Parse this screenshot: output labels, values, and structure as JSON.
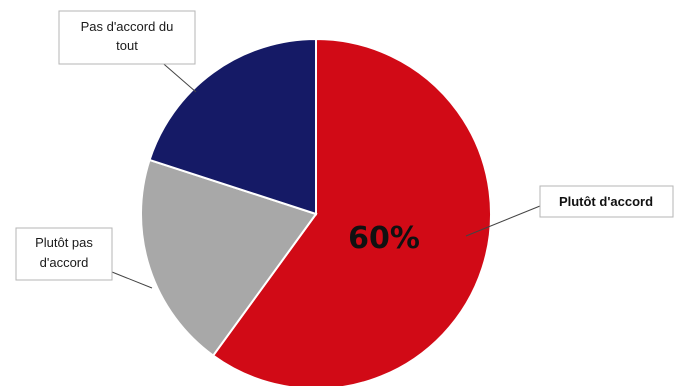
{
  "chart_data": {
    "type": "pie",
    "title": "",
    "slices": [
      {
        "label": "Plutôt d'accord",
        "value": 60,
        "color": "#d10a16"
      },
      {
        "label": "Plutôt pas d'accord",
        "value": 20,
        "color": "#a8a8a8"
      },
      {
        "label": "Pas d'accord du tout",
        "value": 20,
        "color": "#151a66"
      }
    ],
    "data_labels": {
      "Plutôt d'accord": "60%"
    },
    "legend": "none"
  },
  "labels": {
    "slice1_line1": "Pas d'accord du",
    "slice1_line2": "tout",
    "slice2_line1": "Plutôt pas",
    "slice2_line2": "d'accord",
    "slice0": "Plutôt d'accord",
    "percent0": "60%"
  }
}
